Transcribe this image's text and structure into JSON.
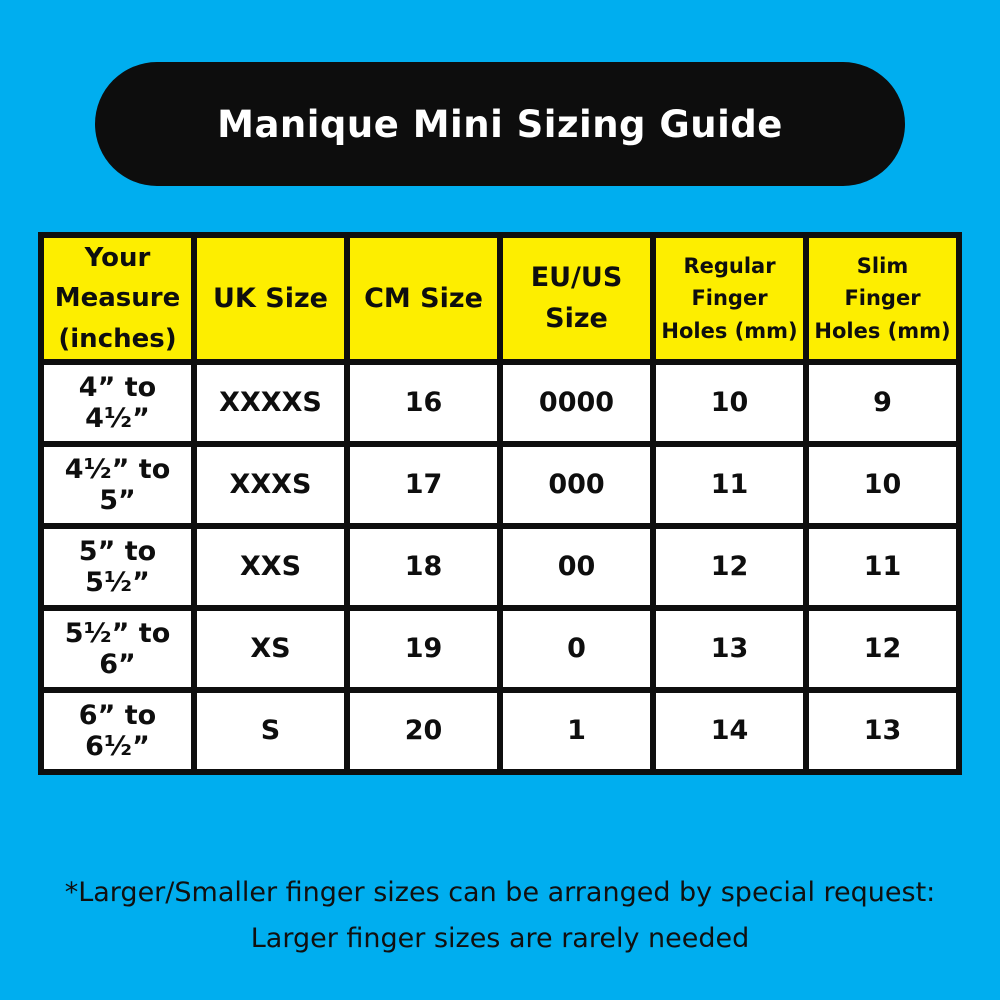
{
  "title": "Manique Mini Sizing Guide",
  "colors": {
    "background": "#00AEEF",
    "banner": "#0D0D0D",
    "banner_text": "#FFFFFF",
    "header_cell": "#FDEE00",
    "data_cell": "#FFFFFF",
    "border": "#0E0E0E",
    "text": "#101010"
  },
  "table": {
    "headers": [
      "Your\nMeasure\n(inches)",
      "UK Size",
      "CM Size",
      "EU/US\nSize",
      "Regular\nFinger\nHoles (mm)",
      "Slim\nFinger\nHoles (mm)"
    ],
    "rows": [
      [
        "4” to 4¹⁄₂”",
        "XXXXS",
        "16",
        "0000",
        "10",
        "9"
      ],
      [
        "4¹⁄₂” to 5”",
        "XXXS",
        "17",
        "000",
        "11",
        "10"
      ],
      [
        "5” to 5¹⁄₂”",
        "XXS",
        "18",
        "00",
        "12",
        "11"
      ],
      [
        "5¹⁄₂” to 6”",
        "XS",
        "19",
        "0",
        "13",
        "12"
      ],
      [
        "6” to 6¹⁄₂”",
        "S",
        "20",
        "1",
        "14",
        "13"
      ]
    ]
  },
  "footnote": {
    "line1": "*Larger/Smaller finger sizes can be arranged by special request:",
    "line2": "Larger finger sizes are rarely needed"
  }
}
